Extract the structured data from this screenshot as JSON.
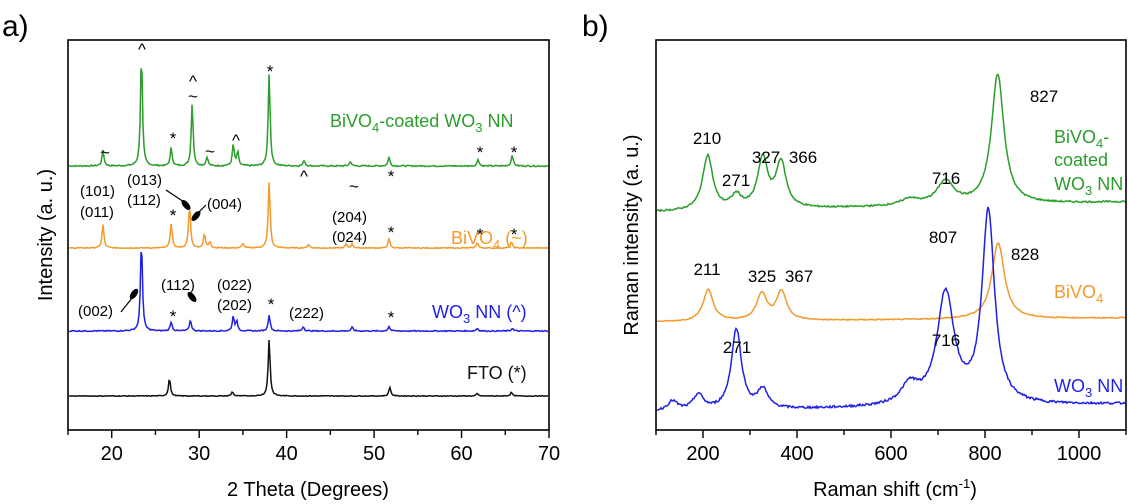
{
  "colors": {
    "BiVO4-coated WO3 NN": "#2a9d2a",
    "BiVO4": "#f39a2c",
    "WO3 NN": "#1f1fe6",
    "FTO": "#111111",
    "axis": "#000000"
  },
  "chart_data": [
    {
      "panel": "a)",
      "type": "line",
      "xlabel": "2 Theta (Degrees)",
      "ylabel": "Intensity (a. u.)",
      "xlim": [
        15,
        70
      ],
      "xticks": [
        "20",
        "30",
        "40",
        "50",
        "60",
        "70"
      ],
      "y_ticks_labeled": false,
      "grid": false,
      "series": [
        {
          "name": "BiVO₄-coated WO₃ NN",
          "color": "#2a9d2a",
          "baseline": 0.08,
          "peaks": [
            [
              19.0,
              0.14
            ],
            [
              23.4,
              1.0
            ],
            [
              26.8,
              0.16
            ],
            [
              29.2,
              0.55
            ],
            [
              30.9,
              0.08
            ],
            [
              33.9,
              0.19
            ],
            [
              34.4,
              0.12
            ],
            [
              38.0,
              0.82
            ],
            [
              42.0,
              0.05
            ],
            [
              47.3,
              0.04
            ],
            [
              51.7,
              0.08
            ],
            [
              61.9,
              0.06
            ],
            [
              65.8,
              0.1
            ]
          ]
        },
        {
          "name": "BiVO₄ (~)",
          "color": "#f39a2c",
          "baseline": 0.06,
          "peaks": [
            [
              19.0,
              0.3
            ],
            [
              26.8,
              0.32
            ],
            [
              28.9,
              0.55
            ],
            [
              30.6,
              0.18
            ],
            [
              31.2,
              0.08
            ],
            [
              35.0,
              0.06
            ],
            [
              38.0,
              0.85
            ],
            [
              42.5,
              0.05
            ],
            [
              46.8,
              0.05
            ],
            [
              47.5,
              0.05
            ],
            [
              51.7,
              0.12
            ],
            [
              61.8,
              0.07
            ],
            [
              65.7,
              0.08
            ]
          ]
        },
        {
          "name": "WO₃ NN (^)",
          "color": "#1f1fe6",
          "baseline": 0.05,
          "peaks": [
            [
              23.4,
              1.0
            ],
            [
              26.8,
              0.1
            ],
            [
              29.0,
              0.12
            ],
            [
              33.9,
              0.16
            ],
            [
              34.3,
              0.1
            ],
            [
              38.0,
              0.18
            ],
            [
              41.9,
              0.05
            ],
            [
              47.5,
              0.04
            ],
            [
              51.7,
              0.05
            ],
            [
              61.8,
              0.03
            ],
            [
              65.8,
              0.03
            ]
          ]
        },
        {
          "name": "FTO (*)",
          "color": "#111111",
          "baseline": 0.04,
          "peaks": [
            [
              26.6,
              0.3
            ],
            [
              33.8,
              0.07
            ],
            [
              38.0,
              0.95
            ],
            [
              51.8,
              0.15
            ],
            [
              61.8,
              0.04
            ],
            [
              65.7,
              0.06
            ]
          ]
        }
      ],
      "series_labels": [
        {
          "main": "BiVO",
          "sub1": "4",
          "mid": "-coated WO",
          "sub2": "3",
          "tail": " NN"
        },
        {
          "main": "BiVO",
          "sub1": "4",
          "mid": " (~)",
          "sub2": "",
          "tail": ""
        },
        {
          "main": "WO",
          "sub1": "3",
          "mid": " NN (^)",
          "sub2": "",
          "tail": ""
        },
        {
          "main": "FTO (*)",
          "sub1": "",
          "mid": "",
          "sub2": "",
          "tail": ""
        }
      ],
      "annotations": {
        "green_marks": [
          {
            "x": 19.0,
            "t": "~"
          },
          {
            "x": 23.4,
            "t": "^"
          },
          {
            "x": 26.8,
            "t": "*"
          },
          {
            "x": 29.2,
            "t": "~"
          },
          {
            "x": 29.2,
            "t2": "^"
          },
          {
            "x": 30.9,
            "t": "~"
          },
          {
            "x": 34.0,
            "t": "^"
          },
          {
            "x": 38.0,
            "t": "*"
          },
          {
            "x": 42.0,
            "t": "^"
          },
          {
            "x": 47.4,
            "t": "~"
          },
          {
            "x": 51.8,
            "t": "*"
          },
          {
            "x": 61.9,
            "t": "*"
          },
          {
            "x": 65.8,
            "t": "*"
          }
        ],
        "orange_hkl": [
          "(101)",
          "(011)",
          "(013)",
          "(112)",
          "(004)",
          "(204)",
          "(024)"
        ],
        "orange_stars": [
          "*",
          "*",
          "*",
          "*"
        ],
        "blue_hkl": [
          "(002)",
          "(112)",
          "(022)",
          "(202)",
          "(222)"
        ],
        "blue_stars": [
          "*",
          "*",
          "*"
        ]
      }
    },
    {
      "panel": "b)",
      "type": "line",
      "xlabel": "Raman shift (cm",
      "xlabel_sup": "-1",
      "xlabel_tail": ")",
      "ylabel": "Raman intensity (a. u.)",
      "xlim": [
        100,
        1100
      ],
      "xticks": [
        "200",
        "400",
        "600",
        "800",
        "1000"
      ],
      "y_ticks_labeled": false,
      "grid": false,
      "series": [
        {
          "name": "BiVO₄-coated WO₃ NN",
          "color": "#2a9d2a",
          "peaks": [
            [
              210,
              0.42
            ],
            [
              271,
              0.1
            ],
            [
              327,
              0.38
            ],
            [
              366,
              0.35
            ],
            [
              640,
              0.05
            ],
            [
              716,
              0.18
            ],
            [
              827,
              1.0
            ]
          ]
        },
        {
          "name": "BiVO₄",
          "color": "#f39a2c",
          "peaks": [
            [
              211,
              0.35
            ],
            [
              325,
              0.3
            ],
            [
              367,
              0.32
            ],
            [
              828,
              0.85
            ]
          ]
        },
        {
          "name": "WO₃ NN",
          "color": "#1f1fe6",
          "peaks": [
            [
              135,
              0.05
            ],
            [
              190,
              0.08
            ],
            [
              271,
              0.42
            ],
            [
              327,
              0.1
            ],
            [
              640,
              0.1
            ],
            [
              716,
              0.58
            ],
            [
              807,
              1.0
            ]
          ]
        }
      ],
      "peak_labels": [
        "210",
        "271",
        "327",
        "366",
        "716",
        "827",
        "211",
        "325",
        "367",
        "807",
        "828",
        "271",
        "716"
      ],
      "series_labels": [
        {
          "l1": "BiVO",
          "l1sub": "4",
          "l1tail": "-",
          "l2": "coated",
          "l3": "WO",
          "l3sub": "3",
          "l3tail": " NN"
        },
        {
          "l1": "BiVO",
          "l1sub": "4"
        },
        {
          "l1": "WO",
          "l1sub": "3",
          "l1tail": " NN"
        }
      ]
    }
  ]
}
